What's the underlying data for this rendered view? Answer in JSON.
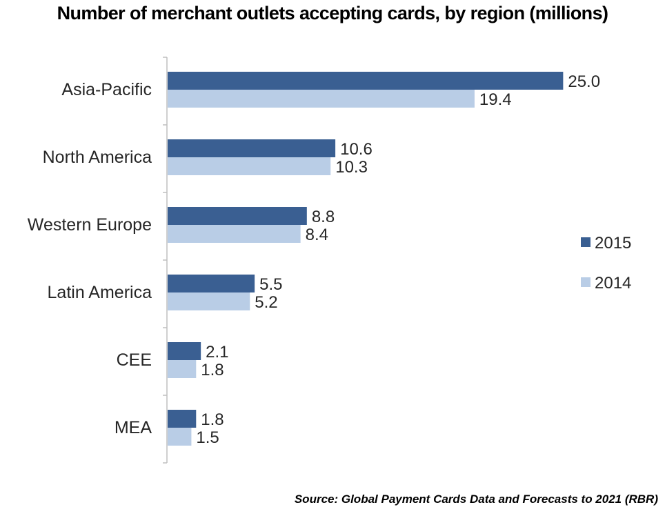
{
  "chart_data": {
    "type": "bar",
    "orientation": "horizontal",
    "title": "Number of merchant outlets accepting cards, by region (millions)",
    "source": "Source: Global Payment Cards Data and Forecasts to 2021 (RBR)",
    "categories": [
      "Asia-Pacific",
      "North America",
      "Western Europe",
      "Latin America",
      "CEE",
      "MEA"
    ],
    "series": [
      {
        "name": "2015",
        "color": "#3a5f92",
        "values": [
          25.0,
          10.6,
          8.8,
          5.5,
          2.1,
          1.8
        ],
        "labels": [
          "25.0",
          "10.6",
          "8.8",
          "5.5",
          "2.1",
          "1.8"
        ]
      },
      {
        "name": "2014",
        "color": "#b9cde6",
        "values": [
          19.4,
          10.3,
          8.4,
          5.2,
          1.8,
          1.5
        ],
        "labels": [
          "19.4",
          "10.3",
          "8.4",
          "5.2",
          "1.8",
          "1.5"
        ]
      }
    ],
    "xlim": [
      0,
      25.9
    ],
    "grid": false,
    "legend_position": "right"
  }
}
